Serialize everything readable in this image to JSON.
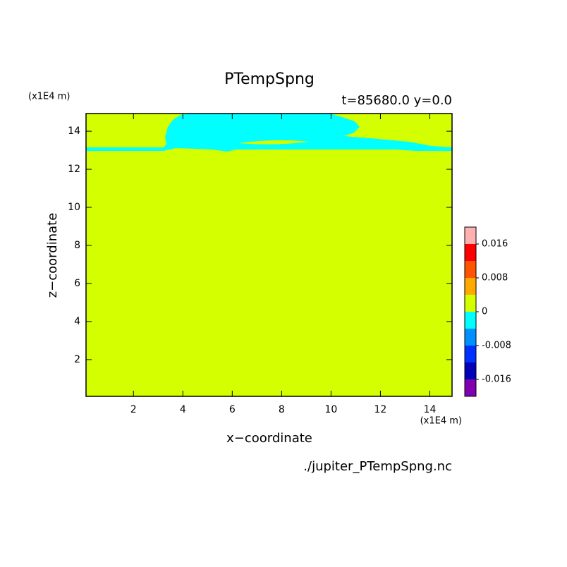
{
  "chart_data": {
    "type": "contour",
    "title": "PTempSpng",
    "subtitle": "t=85680.0 y=0.0",
    "x_label": "x−coordinate",
    "y_label": "z−coordinate",
    "x_unit": "(x1E4 m)",
    "y_unit": "(x1E4 m)",
    "source": "./jupiter_PTempSpng.nc",
    "xlim": [
      0.08,
      14.9
    ],
    "ylim": [
      0.07,
      14.93
    ],
    "xticks": [
      2,
      4,
      6,
      8,
      10,
      12,
      14
    ],
    "yticks": [
      2,
      4,
      6,
      8,
      10,
      12,
      14
    ],
    "colorbar": {
      "levels": [
        -0.016,
        -0.012,
        -0.008,
        -0.004,
        0,
        0.004,
        0.008,
        0.012,
        0.016
      ],
      "colors": [
        "#8000b0",
        "#0000b8",
        "#0030ff",
        "#0090ff",
        "#00ffff",
        "#d4ff00",
        "#ffaa00",
        "#ff5500",
        "#ff0000",
        "#ffb0b0"
      ],
      "ticks": [
        0.016,
        0.008,
        0,
        -0.008,
        -0.016
      ]
    }
  }
}
